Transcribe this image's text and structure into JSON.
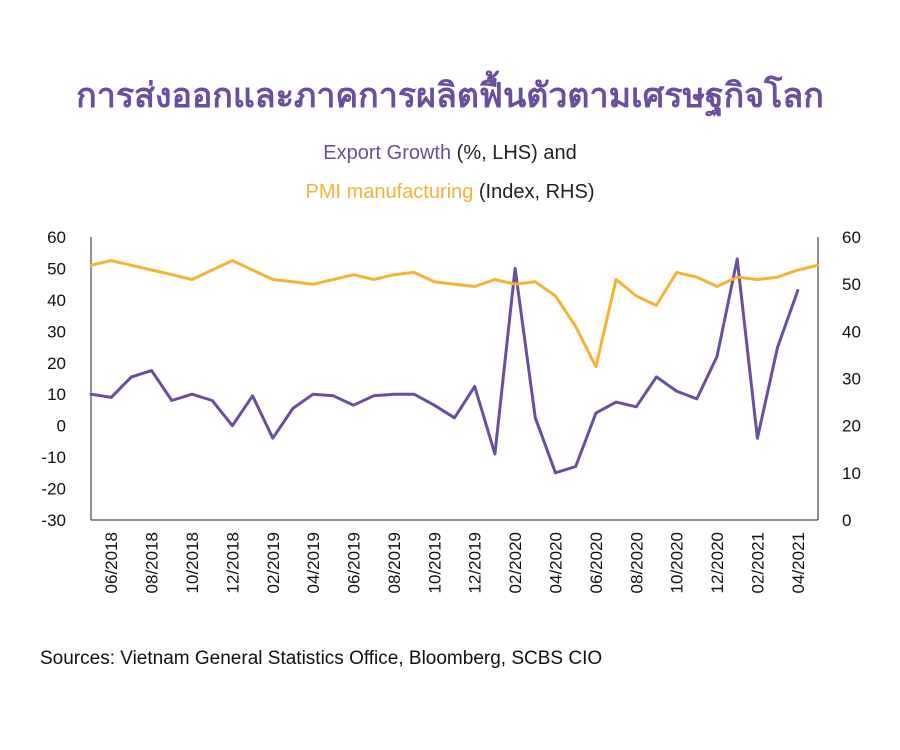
{
  "title": "การส่งออกและภาคการผลิตฟื้นตัวตามเศรษฐกิจโลก",
  "subtitle_line1": {
    "series_name": "Export Growth",
    "rest": " (%, LHS) and"
  },
  "subtitle_line2": {
    "series_name": "PMI manufacturing",
    "rest": " (Index, RHS)"
  },
  "source": "Sources: Vietnam General Statistics Office, Bloomberg, SCBS CIO",
  "colors": {
    "export": "#6b4ea0",
    "pmi": "#f5b335",
    "axis": "#222222"
  },
  "chart_data": {
    "type": "line",
    "x": [
      "05/2018",
      "06/2018",
      "07/2018",
      "08/2018",
      "09/2018",
      "10/2018",
      "11/2018",
      "12/2018",
      "01/2019",
      "02/2019",
      "03/2019",
      "04/2019",
      "05/2019",
      "06/2019",
      "07/2019",
      "08/2019",
      "09/2019",
      "10/2019",
      "11/2019",
      "12/2019",
      "01/2020",
      "02/2020",
      "03/2020",
      "04/2020",
      "05/2020",
      "06/2020",
      "07/2020",
      "08/2020",
      "09/2020",
      "10/2020",
      "11/2020",
      "12/2020",
      "01/2021",
      "02/2021",
      "03/2021",
      "04/2021",
      "05/2021"
    ],
    "x_tick_labels": [
      "06/2018",
      "08/2018",
      "10/2018",
      "12/2018",
      "02/2019",
      "04/2019",
      "06/2019",
      "08/2019",
      "10/2019",
      "12/2019",
      "02/2020",
      "04/2020",
      "06/2020",
      "08/2020",
      "10/2020",
      "12/2020",
      "02/2021",
      "04/2021"
    ],
    "series": [
      {
        "name": "Export Growth",
        "axis": "left",
        "values": [
          10,
          9,
          15.5,
          17.5,
          8,
          10,
          8,
          0,
          9.5,
          -4,
          5.5,
          10,
          9.5,
          6.5,
          9.5,
          10,
          10,
          6.5,
          2.5,
          12.5,
          -9,
          50,
          2.5,
          -15,
          -13,
          4,
          7.5,
          6,
          15.5,
          11,
          8.5,
          22,
          53,
          -4,
          25,
          43,
          null
        ]
      },
      {
        "name": "PMI manufacturing",
        "axis": "right",
        "values": [
          54,
          55,
          54,
          53,
          52,
          51,
          53,
          55,
          53,
          51,
          50.5,
          50,
          51,
          52,
          51,
          52,
          52.5,
          50.5,
          50,
          49.5,
          51,
          50,
          50.5,
          47.5,
          41,
          32.5,
          51,
          47.5,
          45.5,
          52.5,
          51.5,
          49.5,
          51.5,
          51,
          51.5,
          53,
          54
        ]
      }
    ],
    "y_left": {
      "range": [
        -30,
        60
      ],
      "ticks": [
        -30,
        -20,
        -10,
        0,
        10,
        20,
        30,
        40,
        50,
        60
      ]
    },
    "y_right": {
      "range": [
        0,
        60
      ],
      "ticks": [
        0,
        10,
        20,
        30,
        40,
        50,
        60
      ]
    },
    "grid": false,
    "legend": "subtitle"
  }
}
